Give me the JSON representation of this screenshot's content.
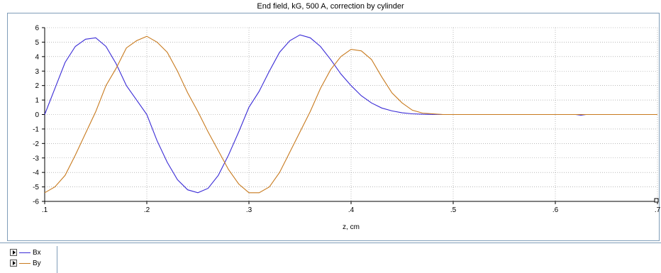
{
  "chart_data": {
    "type": "line",
    "title": "End field, kG, 500 A, correction by cylinder",
    "xlabel": "z, cm",
    "ylabel": "",
    "xlim": [
      0.1,
      0.7
    ],
    "ylim": [
      -6,
      6
    ],
    "xticks": [
      0.1,
      0.2,
      0.3,
      0.4,
      0.5,
      0.6,
      0.7
    ],
    "xtick_labels": [
      ".1",
      ".2",
      ".3",
      ".4",
      ".5",
      ".6",
      ".7"
    ],
    "yticks": [
      6,
      5,
      4,
      3,
      2,
      1,
      0,
      -1,
      -2,
      -3,
      -4,
      -5,
      -6
    ],
    "ytick_labels": [
      "6",
      "5",
      "4",
      "3",
      "2",
      "1",
      "0",
      "-1",
      "-2",
      "-3",
      "-4",
      "-5",
      "-6"
    ],
    "grid": true,
    "legend_position": "bottom-left",
    "series": [
      {
        "name": "Bx",
        "color": "#3a2bd6",
        "x": [
          0.1,
          0.11,
          0.12,
          0.13,
          0.14,
          0.15,
          0.16,
          0.17,
          0.18,
          0.19,
          0.2,
          0.21,
          0.22,
          0.23,
          0.24,
          0.25,
          0.26,
          0.27,
          0.28,
          0.29,
          0.3,
          0.31,
          0.32,
          0.33,
          0.34,
          0.35,
          0.36,
          0.37,
          0.38,
          0.39,
          0.4,
          0.41,
          0.42,
          0.43,
          0.44,
          0.45,
          0.46,
          0.47,
          0.48,
          0.49,
          0.5,
          0.55,
          0.6,
          0.62,
          0.625,
          0.63,
          0.65,
          0.7
        ],
        "y": [
          0.0,
          1.8,
          3.6,
          4.7,
          5.2,
          5.3,
          4.7,
          3.5,
          2.0,
          1.0,
          0.0,
          -1.8,
          -3.3,
          -4.5,
          -5.2,
          -5.4,
          -5.1,
          -4.2,
          -2.8,
          -1.2,
          0.5,
          1.6,
          3.0,
          4.3,
          5.1,
          5.5,
          5.3,
          4.7,
          3.8,
          2.8,
          2.0,
          1.3,
          0.8,
          0.45,
          0.25,
          0.12,
          0.05,
          0.02,
          0.01,
          0.0,
          0.0,
          0.0,
          0.0,
          0.0,
          -0.05,
          0.0,
          0.0,
          0.0
        ]
      },
      {
        "name": "By",
        "color": "#c87a1e",
        "x": [
          0.1,
          0.11,
          0.12,
          0.13,
          0.14,
          0.15,
          0.16,
          0.17,
          0.18,
          0.19,
          0.2,
          0.21,
          0.22,
          0.23,
          0.24,
          0.25,
          0.26,
          0.27,
          0.28,
          0.29,
          0.3,
          0.31,
          0.32,
          0.33,
          0.34,
          0.35,
          0.36,
          0.37,
          0.38,
          0.39,
          0.4,
          0.41,
          0.42,
          0.43,
          0.44,
          0.45,
          0.46,
          0.47,
          0.48,
          0.49,
          0.5,
          0.55,
          0.6,
          0.65,
          0.7
        ],
        "y": [
          -5.4,
          -5.0,
          -4.2,
          -2.8,
          -1.3,
          0.2,
          2.0,
          3.2,
          4.6,
          5.1,
          5.4,
          5.0,
          4.3,
          3.0,
          1.5,
          0.2,
          -1.2,
          -2.5,
          -3.8,
          -4.8,
          -5.4,
          -5.4,
          -5.0,
          -4.0,
          -2.6,
          -1.2,
          0.2,
          1.8,
          3.1,
          4.0,
          4.5,
          4.4,
          3.8,
          2.6,
          1.5,
          0.8,
          0.3,
          0.1,
          0.05,
          0.0,
          0.0,
          0.0,
          0.0,
          0.0,
          0.0
        ]
      }
    ]
  }
}
